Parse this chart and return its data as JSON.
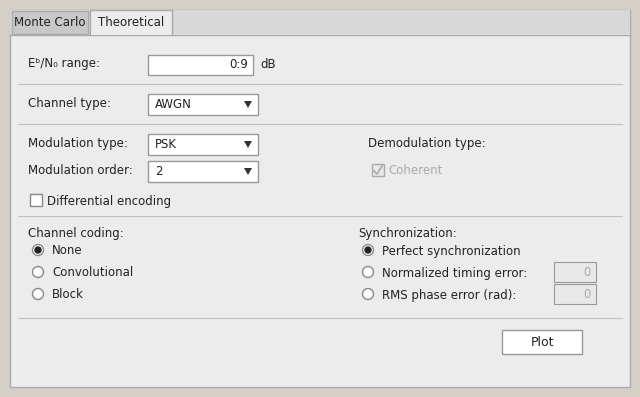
{
  "bg_color": "#d4d0c8",
  "panel_color": "#ececec",
  "tab_active": "Theoretical",
  "tab_inactive": "Monte Carlo",
  "tab_inactive_bg": "#c8c8c8",
  "tab_active_bg": "#ececec",
  "text_color": "#222222",
  "input_bg": "#ffffff",
  "disabled_bg": "#e8e8e8",
  "border_color": "#999999",
  "separator_color": "#c0c0c0",
  "eb_n0_label": "Eᵇ/N₀ range:",
  "eb_n0_value": "0:9",
  "channel_type": "AWGN",
  "mod_type": "PSK",
  "mod_order": "2",
  "demod_label": "Demodulation type:",
  "coherent_label": "Coherent",
  "diff_enc_label": "Differential encoding",
  "channel_coding_label": "Channel coding:",
  "sync_label": "Synchronization:",
  "coding_options": [
    "None",
    "Convolutional",
    "Block"
  ],
  "sync_options": [
    "Perfect synchronization",
    "Normalized timing error:",
    "RMS phase error (rad):"
  ],
  "sync_inputs": [
    "",
    "0",
    "0"
  ],
  "plot_btn": "Plot",
  "figsize": [
    6.4,
    3.97
  ],
  "dpi": 100
}
